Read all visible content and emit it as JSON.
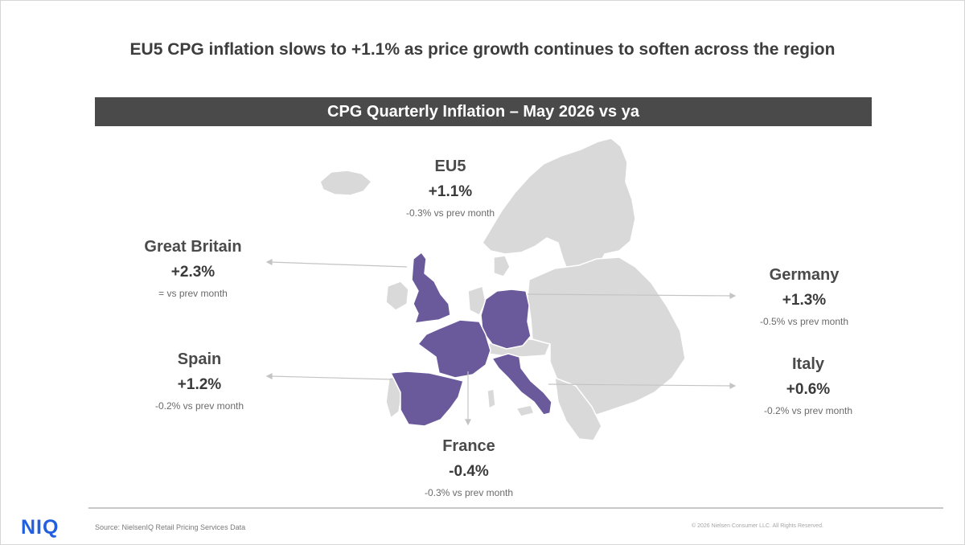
{
  "headline": "EU5 CPG inflation slows to +1.1% as price growth continues to soften across the region",
  "banner": "CPG Quarterly Inflation – May 2026 vs ya",
  "colors": {
    "highlight": "#6a5a9c",
    "land": "#d9d9d9",
    "banner_bg": "#4a4a4a",
    "logo": "#1f5fe0"
  },
  "regions": {
    "eu5": {
      "name": "EU5",
      "value": "+1.1%",
      "delta": "-0.3% vs prev month"
    },
    "great_britain": {
      "name": "Great Britain",
      "value": "+2.3%",
      "delta": "= vs prev month"
    },
    "germany": {
      "name": "Germany",
      "value": "+1.3%",
      "delta": "-0.5% vs prev month"
    },
    "spain": {
      "name": "Spain",
      "value": "+1.2%",
      "delta": "-0.2% vs prev month"
    },
    "italy": {
      "name": "Italy",
      "value": "+0.6%",
      "delta": "-0.2% vs prev month"
    },
    "france": {
      "name": "France",
      "value": "-0.4%",
      "delta": "-0.3% vs prev month"
    }
  },
  "footer": {
    "logo": "NIQ",
    "source": "Source: NielsenIQ Retail Pricing Services Data",
    "copyright": "© 2026 Nielsen Consumer LLC. All Rights Reserved."
  }
}
